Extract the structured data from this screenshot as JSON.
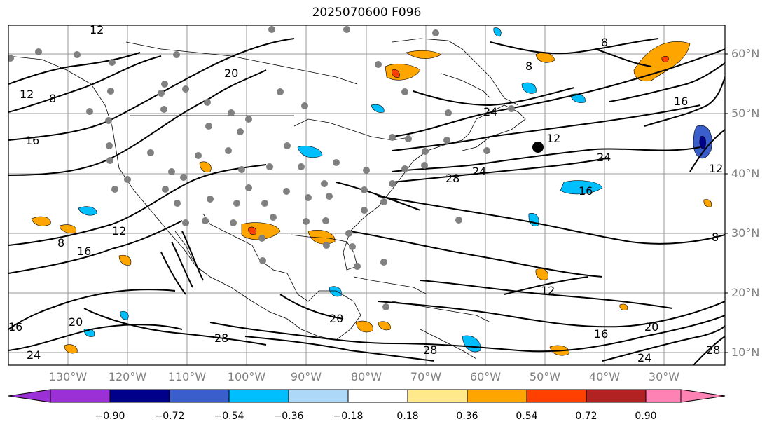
{
  "title": "2025070600 F096",
  "map": {
    "lat_labels": [
      "60°N",
      "50°N",
      "40°N",
      "30°N",
      "20°N",
      "10°N"
    ],
    "lon_labels": [
      "130°W",
      "120°W",
      "110°W",
      "100°W",
      "90°W",
      "80°W",
      "70°W",
      "60°W",
      "50°W",
      "40°W",
      "30°W"
    ],
    "contour_labels": [
      "12",
      "8",
      "12",
      "16",
      "8",
      "12",
      "16",
      "20",
      "24",
      "28",
      "16",
      "24",
      "8",
      "12",
      "16",
      "20",
      "24",
      "28",
      "12",
      "16",
      "20",
      "24",
      "28",
      "8",
      "20",
      "16",
      "12",
      "8",
      "24",
      "28"
    ],
    "grid_color": "#808080",
    "contour_color": "#000000",
    "label_color": "#808080"
  },
  "colorbar": {
    "ticks": [
      "−0.90",
      "−0.72",
      "−0.54",
      "−0.36",
      "−0.18",
      "0.18",
      "0.36",
      "0.54",
      "0.72",
      "0.90"
    ],
    "colors": [
      "#9b30d6",
      "#00008b",
      "#3a5fcd",
      "#00bfff",
      "#add8f7",
      "#ffffff",
      "#ffe98a",
      "#ffa500",
      "#ff4000",
      "#b22222",
      "#ff82b4"
    ]
  }
}
